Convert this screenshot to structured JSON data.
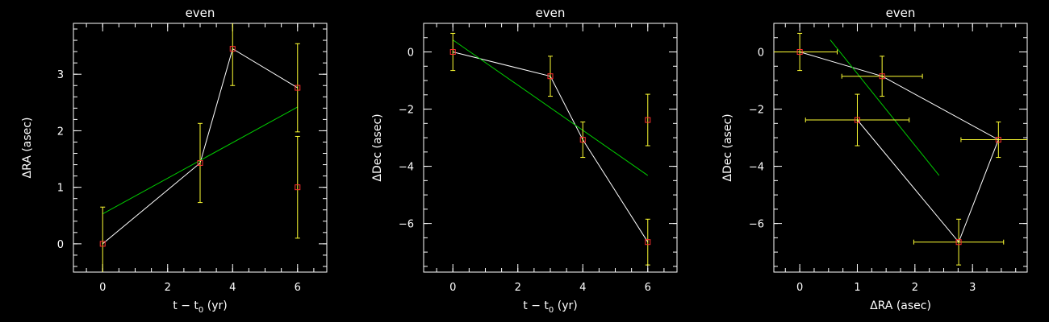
{
  "chart_data": [
    {
      "type": "scatter",
      "title": "even",
      "xlabel": "t − t",
      "xlabel_sub": "0",
      "xlabel_suffix": " (yr)",
      "ylabel": "ΔRA (asec)",
      "xlim": [
        -0.9,
        6.9
      ],
      "ylim": [
        -0.5,
        3.9
      ],
      "xticks": [
        0,
        2,
        4,
        6
      ],
      "yticks": [
        0,
        1,
        2,
        3
      ],
      "colors": {
        "axes": "#ffffff",
        "points": "#ff3030",
        "errorbars": "#ffff33",
        "connector": "#ffffff",
        "fit": "#00cc00"
      },
      "points": [
        {
          "x": 0,
          "y": 0.0,
          "yerr": 0.65
        },
        {
          "x": 3,
          "y": 1.43,
          "yerr": 0.7
        },
        {
          "x": 4,
          "y": 3.45,
          "yerr": 0.65
        },
        {
          "x": 6,
          "y": 2.76,
          "yerr": 0.78
        },
        {
          "x": 6,
          "y": 1.0,
          "yerr": 0.9
        }
      ],
      "connector": [
        [
          0,
          0.0
        ],
        [
          3,
          1.43
        ],
        [
          4,
          3.45
        ],
        [
          6,
          2.76
        ]
      ],
      "fit": [
        [
          0,
          0.53
        ],
        [
          6,
          2.42
        ]
      ]
    },
    {
      "type": "scatter",
      "title": "even",
      "xlabel": "t − t",
      "xlabel_sub": "0",
      "xlabel_suffix": " (yr)",
      "ylabel": "ΔDec (asec)",
      "xlim": [
        -0.9,
        6.9
      ],
      "ylim": [
        -7.7,
        1.0
      ],
      "xticks": [
        0,
        2,
        4,
        6
      ],
      "yticks": [
        0,
        -2,
        -4,
        -6
      ],
      "colors": {
        "axes": "#ffffff",
        "points": "#ff3030",
        "errorbars": "#ffff33",
        "connector": "#ffffff",
        "fit": "#00cc00"
      },
      "points": [
        {
          "x": 0,
          "y": 0.0,
          "yerr": 0.65
        },
        {
          "x": 3,
          "y": -0.85,
          "yerr": 0.7
        },
        {
          "x": 4,
          "y": -3.07,
          "yerr": 0.62
        },
        {
          "x": 6,
          "y": -6.65,
          "yerr": 0.8
        },
        {
          "x": 6,
          "y": -2.38,
          "yerr": 0.9
        }
      ],
      "connector": [
        [
          0,
          0.0
        ],
        [
          3,
          -0.85
        ],
        [
          4,
          -3.07
        ],
        [
          6,
          -6.65
        ]
      ],
      "fit": [
        [
          0,
          0.42
        ],
        [
          6,
          -4.32
        ]
      ]
    },
    {
      "type": "scatter",
      "title": "even",
      "xlabel": "ΔRA (asec)",
      "xlabel_sub": "",
      "xlabel_suffix": "",
      "ylabel": "ΔDec (asec)",
      "xlim": [
        -0.45,
        3.95
      ],
      "ylim": [
        -7.7,
        1.0
      ],
      "xticks": [
        0,
        1,
        2,
        3
      ],
      "yticks": [
        0,
        -2,
        -4,
        -6
      ],
      "colors": {
        "axes": "#ffffff",
        "points": "#ff3030",
        "errorbars": "#ffff33",
        "connector": "#ffffff",
        "fit": "#00cc00"
      },
      "points": [
        {
          "x": 0.0,
          "y": 0.0,
          "xerr": 0.65,
          "yerr": 0.65
        },
        {
          "x": 1.43,
          "y": -0.85,
          "xerr": 0.7,
          "yerr": 0.7
        },
        {
          "x": 3.45,
          "y": -3.07,
          "xerr": 0.65,
          "yerr": 0.62
        },
        {
          "x": 2.76,
          "y": -6.65,
          "xerr": 0.78,
          "yerr": 0.8
        },
        {
          "x": 1.0,
          "y": -2.38,
          "xerr": 0.9,
          "yerr": 0.9
        }
      ],
      "connector": [
        [
          0.0,
          0.0
        ],
        [
          1.43,
          -0.85
        ],
        [
          3.45,
          -3.07
        ],
        [
          2.76,
          -6.65
        ],
        [
          1.0,
          -2.38
        ]
      ],
      "fit": [
        [
          0.53,
          0.42
        ],
        [
          2.42,
          -4.32
        ]
      ]
    }
  ]
}
